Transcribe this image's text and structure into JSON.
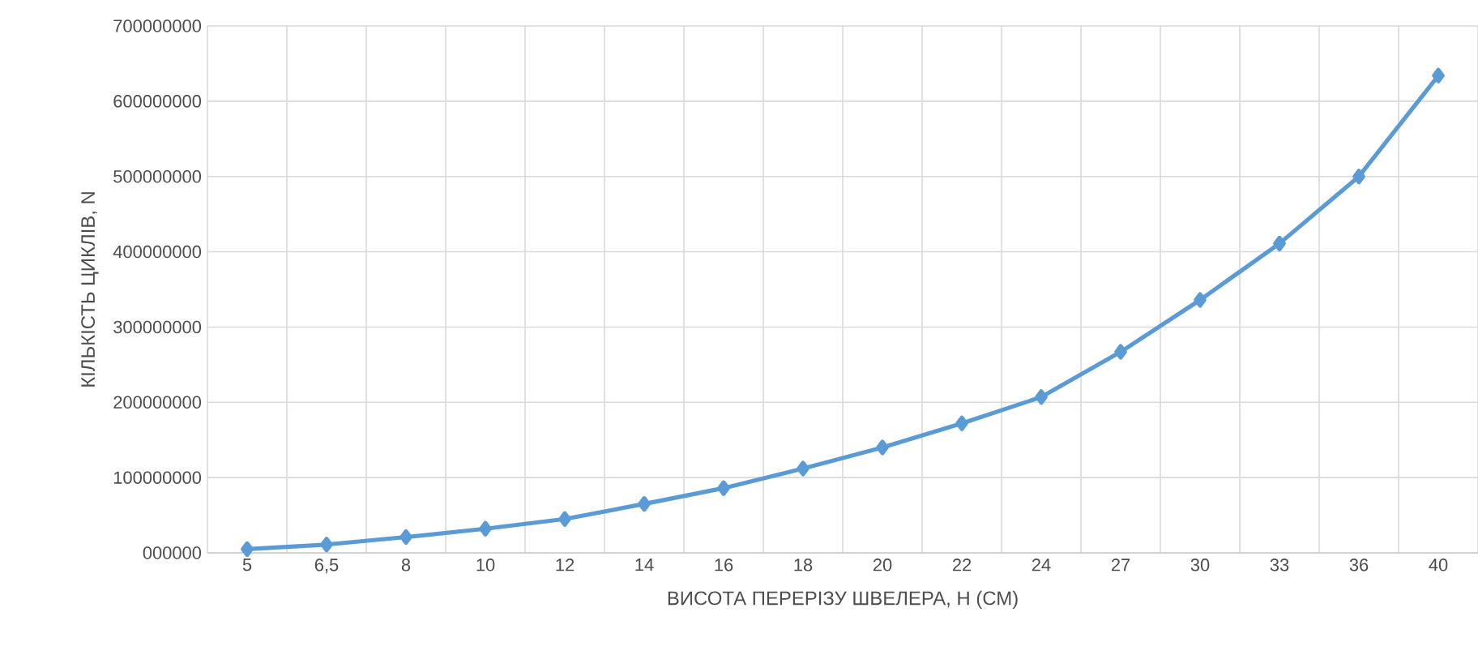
{
  "chart_data": {
    "type": "line",
    "xlabel": "ВИСОТА ПЕРЕРІЗУ ШВЕЛЕРА, H (СМ)",
    "ylabel": "КІЛЬКІСТЬ ЦИКЛІВ, N",
    "categories": [
      "5",
      "6,5",
      "8",
      "10",
      "12",
      "14",
      "16",
      "18",
      "20",
      "22",
      "24",
      "27",
      "30",
      "33",
      "36",
      "40"
    ],
    "series": [
      {
        "color": "#5b9bd5",
        "values": [
          5000000,
          11000000,
          21000000,
          32000000,
          45000000,
          65000000,
          86000000,
          112000000,
          140000000,
          172000000,
          207000000,
          267000000,
          336000000,
          411000000,
          500000000,
          634000000
        ]
      }
    ],
    "ylim": [
      0,
      700000000
    ],
    "yticks": [
      {
        "value": 0,
        "label": "000000"
      },
      100000000,
      200000000,
      300000000,
      400000000,
      500000000,
      600000000,
      700000000
    ],
    "grid": true,
    "marker": "diamond",
    "line_style": "solid"
  }
}
